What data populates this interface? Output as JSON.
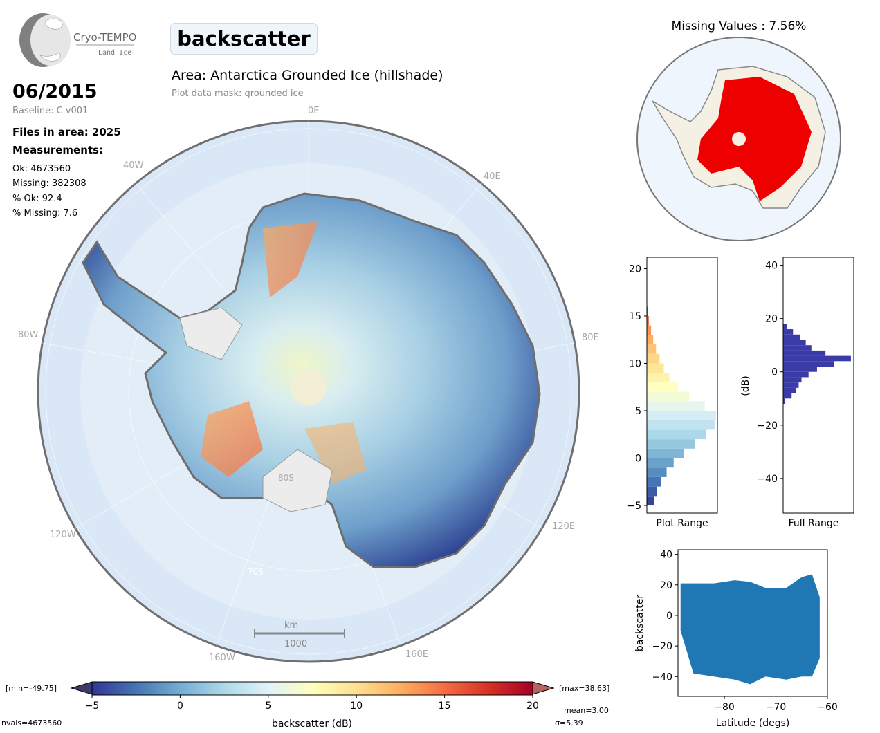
{
  "logo": {
    "title": "Cryo-TEMPO",
    "subtitle": "Land Ice"
  },
  "variable": "backscatter",
  "area_title": "Area: Antarctica Grounded Ice (hillshade)",
  "mask_label": "Plot data mask: grounded ice",
  "date": "06/2015",
  "baseline": "Baseline: C v001",
  "files_in_area": "Files in area: 2025",
  "measurements_heading": "Measurements:",
  "stats": {
    "ok": "Ok: 4673560",
    "missing": "Missing: 382308",
    "pct_ok": "% Ok: 92.4",
    "pct_missing": "% Missing: 7.6"
  },
  "missing_title": "Missing Values : 7.56%",
  "map": {
    "lon_labels": {
      "e0": "0E",
      "w40": "40W",
      "e40": "40E",
      "w80": "80W",
      "e80": "80E",
      "w120": "120W",
      "e120": "120E",
      "w160": "160W",
      "e160": "160E"
    },
    "lat_labels": {
      "s80": "80S",
      "s70": "70S"
    },
    "scalebar": {
      "unit": "km",
      "value": "1000"
    }
  },
  "colorbar": {
    "label": "backscatter (dB)",
    "min_label": "[min=-49.75]",
    "max_label": "[max=38.63]",
    "ticks": [
      "−5",
      "0",
      "5",
      "10",
      "15",
      "20"
    ],
    "nvals": "nvals=4673560",
    "mean": "mean=3.00",
    "sigma": "σ=5.39",
    "colors": [
      "#313695",
      "#4575b4",
      "#74add1",
      "#abd9e9",
      "#e0f3f8",
      "#ffffbf",
      "#fee090",
      "#fdae61",
      "#f46d43",
      "#d73027",
      "#a50026"
    ]
  },
  "chart_data": [
    {
      "type": "bar",
      "name_label": "Plot Range",
      "orientation": "horizontal",
      "ylim": [
        -5.8,
        21.2
      ],
      "yticks": [
        "−5",
        "0",
        "5",
        "10",
        "15",
        "20"
      ],
      "bins": [
        -5,
        -4,
        -3,
        -2,
        -1,
        0,
        1,
        2,
        3,
        4,
        5,
        6,
        7,
        8,
        9,
        10,
        11,
        12,
        13,
        14,
        15
      ],
      "counts": [
        0.1,
        0.14,
        0.2,
        0.28,
        0.38,
        0.52,
        0.68,
        0.84,
        0.96,
        0.98,
        0.82,
        0.6,
        0.44,
        0.32,
        0.24,
        0.18,
        0.13,
        0.09,
        0.06,
        0.03,
        0.01
      ]
    },
    {
      "type": "bar",
      "name_label": "Full Range",
      "ylabel": "(dB)",
      "orientation": "horizontal",
      "ylim": [
        -53,
        43
      ],
      "yticks": [
        "40",
        "20",
        "0",
        "−20",
        "−40"
      ],
      "bins": [
        -12,
        -10,
        -8,
        -6,
        -4,
        -2,
        0,
        2,
        4,
        6,
        8,
        10,
        12,
        14,
        16
      ],
      "counts": [
        0.03,
        0.12,
        0.18,
        0.22,
        0.26,
        0.36,
        0.48,
        0.72,
        0.96,
        0.6,
        0.4,
        0.32,
        0.24,
        0.14,
        0.05
      ]
    },
    {
      "type": "scatter",
      "xlabel": "Latitude (degs)",
      "ylabel": "backscatter",
      "xlim": [
        -89,
        -60
      ],
      "ylim": [
        -53,
        43
      ],
      "xticks": [
        "−80",
        "−70",
        "−60"
      ],
      "yticks": [
        "40",
        "20",
        "0",
        "−20",
        "−40"
      ],
      "color": "#1f77b4",
      "band": {
        "x": [
          -88.5,
          -86,
          -82,
          -78,
          -75,
          -72,
          -68,
          -65,
          -63,
          -61.5
        ],
        "upper": [
          21,
          21,
          21,
          23,
          22,
          18,
          18,
          25,
          27,
          12
        ],
        "lower": [
          -10,
          -38,
          -40,
          -42,
          -45,
          -40,
          -42,
          -40,
          -40,
          -28
        ]
      }
    }
  ]
}
